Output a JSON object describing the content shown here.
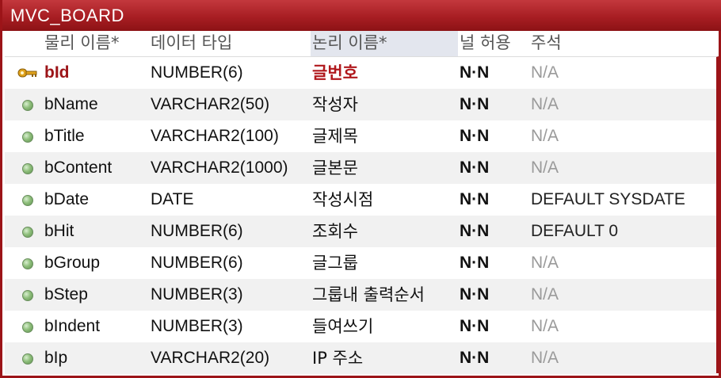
{
  "table": {
    "title": "MVC_BOARD",
    "headers": {
      "physical_name": "물리 이름*",
      "data_type": "데이터 타입",
      "logical_name": "논리 이름*",
      "nullable": "널 허용",
      "comment": "주석"
    },
    "rows": [
      {
        "physical": "bId",
        "type": "NUMBER(6)",
        "logical": "글번호",
        "nullable": "N·N",
        "comment": "N/A",
        "key": "primary-key-icon"
      },
      {
        "physical": "bName",
        "type": "VARCHAR2(50)",
        "logical": "작성자",
        "nullable": "N·N",
        "comment": "N/A",
        "key": "column-dot-icon"
      },
      {
        "physical": "bTitle",
        "type": "VARCHAR2(100)",
        "logical": "글제목",
        "nullable": "N·N",
        "comment": "N/A",
        "key": "column-dot-icon"
      },
      {
        "physical": "bContent",
        "type": "VARCHAR2(1000)",
        "logical": "글본문",
        "nullable": "N·N",
        "comment": "N/A",
        "key": "column-dot-icon"
      },
      {
        "physical": "bDate",
        "type": "DATE",
        "logical": "작성시점",
        "nullable": "N·N",
        "comment": "DEFAULT SYSDATE",
        "key": "column-dot-icon"
      },
      {
        "physical": "bHit",
        "type": "NUMBER(6)",
        "logical": "조회수",
        "nullable": "N·N",
        "comment": "DEFAULT 0",
        "key": "column-dot-icon"
      },
      {
        "physical": "bGroup",
        "type": "NUMBER(6)",
        "logical": "글그룹",
        "nullable": "N·N",
        "comment": "N/A",
        "key": "column-dot-icon"
      },
      {
        "physical": "bStep",
        "type": "NUMBER(3)",
        "logical": "그룹내 출력순서",
        "nullable": "N·N",
        "comment": "N/A",
        "key": "column-dot-icon"
      },
      {
        "physical": "bIndent",
        "type": "NUMBER(3)",
        "logical": "들여쓰기",
        "nullable": "N·N",
        "comment": "N/A",
        "key": "column-dot-icon"
      },
      {
        "physical": "bIp",
        "type": "VARCHAR2(20)",
        "logical": "IP 주소",
        "nullable": "N·N",
        "comment": "N/A",
        "key": "column-dot-icon"
      }
    ]
  },
  "colors": {
    "title_bar": "#a81e23",
    "primary_key_text": "#9c1418",
    "not_applicable": "#9a9a9a"
  }
}
